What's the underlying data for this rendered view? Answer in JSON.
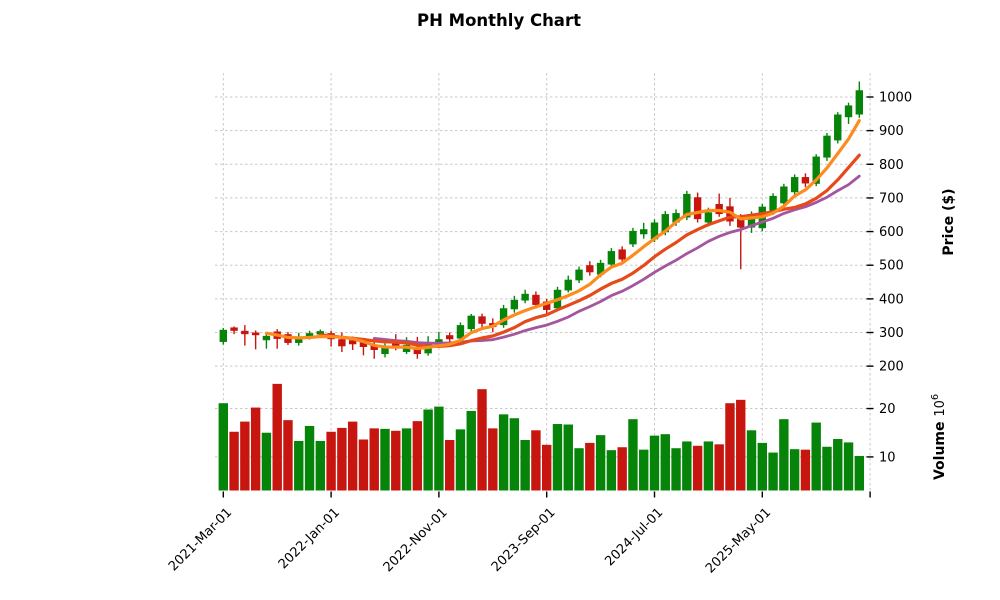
{
  "title": "PH Monthly Chart",
  "price_axis": {
    "label": "Price ($)",
    "ticks": [
      200,
      300,
      400,
      500,
      600,
      700,
      800,
      900,
      1000
    ]
  },
  "volume_axis": {
    "label": "Volume",
    "scale_text": "10",
    "scale_exp": "6",
    "ticks": [
      10,
      20
    ]
  },
  "x_axis": {
    "tick_indices": [
      0,
      10,
      20,
      30,
      40,
      50,
      60
    ],
    "tick_labels": [
      "2021-Mar-01",
      "2022-Jan-01",
      "2022-Nov-01",
      "2023-Sep-01",
      "2024-Jul-01",
      "2025-May-01",
      ""
    ]
  },
  "colors": {
    "up": "#068409",
    "down": "#c7150f",
    "grid": "#c8c8c8",
    "ma_fast": "#fd8b1d",
    "ma_mid": "#e54a18",
    "ma_slow": "#a4559e",
    "text": "#000000"
  },
  "chart_data": {
    "type": "candlestick",
    "symbol": "PH",
    "interval": "monthly",
    "title": "PH Monthly Chart",
    "ylabel": "Price ($)",
    "ylabel_lower": "Volume 10^6",
    "price_ylim": [
      182,
      1077
    ],
    "volume_ylim": [
      3.1,
      27.6
    ],
    "grid": "dashed",
    "legend": "none",
    "moving_averages": [
      {
        "window": 15,
        "color_key": "ma_slow",
        "width": 2.8
      },
      {
        "window": 10,
        "color_key": "ma_mid",
        "width": 3.2
      },
      {
        "window": 5,
        "color_key": "ma_fast",
        "width": 3.2
      }
    ],
    "columns": [
      "date",
      "open",
      "high",
      "low",
      "close",
      "volume_millions"
    ],
    "candles": [
      [
        "2021-03",
        272,
        313,
        264,
        308,
        21.1
      ],
      [
        "2021-04",
        315,
        318,
        295,
        305,
        15.2
      ],
      [
        "2021-05",
        305,
        322,
        261,
        295,
        17.3
      ],
      [
        "2021-06",
        300,
        306,
        250,
        292,
        20.2
      ],
      [
        "2021-07",
        277,
        296,
        252,
        290,
        15.0
      ],
      [
        "2021-08",
        303,
        310,
        252,
        281,
        25.1
      ],
      [
        "2021-09",
        295,
        301,
        263,
        269,
        17.6
      ],
      [
        "2021-10",
        269,
        299,
        261,
        288,
        13.3
      ],
      [
        "2021-11",
        287,
        305,
        279,
        298,
        16.4
      ],
      [
        "2021-12",
        294,
        309,
        287,
        304,
        13.3
      ],
      [
        "2022-01",
        298,
        305,
        258,
        280,
        15.2
      ],
      [
        "2022-02",
        280,
        300,
        242,
        259,
        16.0
      ],
      [
        "2022-03",
        277,
        288,
        248,
        265,
        17.3
      ],
      [
        "2022-04",
        272,
        284,
        232,
        257,
        13.6
      ],
      [
        "2022-05",
        264,
        278,
        222,
        248,
        15.9
      ],
      [
        "2022-06",
        236,
        268,
        226,
        256,
        15.8
      ],
      [
        "2022-07",
        271,
        295,
        247,
        257,
        15.4
      ],
      [
        "2022-08",
        242,
        286,
        236,
        263,
        15.9
      ],
      [
        "2022-09",
        257,
        287,
        222,
        236,
        17.4
      ],
      [
        "2022-10",
        238,
        289,
        231,
        266,
        19.8
      ],
      [
        "2022-11",
        265,
        302,
        256,
        280,
        20.4
      ],
      [
        "2022-12",
        292,
        300,
        269,
        280,
        13.5
      ],
      [
        "2023-01",
        282,
        330,
        276,
        322,
        15.7
      ],
      [
        "2023-02",
        310,
        355,
        300,
        350,
        19.5
      ],
      [
        "2023-03",
        348,
        356,
        314,
        326,
        24.0
      ],
      [
        "2023-04",
        328,
        342,
        301,
        316,
        15.9
      ],
      [
        "2023-05",
        322,
        382,
        314,
        372,
        18.8
      ],
      [
        "2023-06",
        369,
        409,
        359,
        397,
        18.0
      ],
      [
        "2023-07",
        395,
        427,
        387,
        415,
        13.5
      ],
      [
        "2023-08",
        412,
        422,
        371,
        382,
        15.5
      ],
      [
        "2023-09",
        392,
        400,
        352,
        367,
        12.5
      ],
      [
        "2023-10",
        372,
        436,
        364,
        427,
        16.8
      ],
      [
        "2023-11",
        425,
        469,
        419,
        457,
        16.7
      ],
      [
        "2023-12",
        455,
        496,
        447,
        487,
        11.8
      ],
      [
        "2024-01",
        500,
        512,
        469,
        479,
        12.9
      ],
      [
        "2024-02",
        472,
        516,
        464,
        507,
        14.5
      ],
      [
        "2024-03",
        502,
        551,
        494,
        542,
        11.4
      ],
      [
        "2024-04",
        547,
        556,
        507,
        517,
        12.0
      ],
      [
        "2024-05",
        562,
        611,
        554,
        602,
        17.8
      ],
      [
        "2024-06",
        592,
        626,
        579,
        607,
        11.5
      ],
      [
        "2024-07",
        577,
        636,
        569,
        627,
        14.4
      ],
      [
        "2024-08",
        598,
        661,
        589,
        652,
        14.7
      ],
      [
        "2024-09",
        627,
        666,
        617,
        655,
        11.8
      ],
      [
        "2024-10",
        642,
        721,
        634,
        712,
        13.2
      ],
      [
        "2024-11",
        702,
        716,
        627,
        637,
        12.3
      ],
      [
        "2024-12",
        627,
        671,
        615,
        657,
        13.2
      ],
      [
        "2025-01",
        682,
        713,
        644,
        652,
        12.6
      ],
      [
        "2025-02",
        675,
        700,
        617,
        630,
        21.1
      ],
      [
        "2025-03",
        640,
        652,
        488,
        612,
        21.8
      ],
      [
        "2025-04",
        612,
        660,
        596,
        652,
        15.5
      ],
      [
        "2025-05",
        610,
        682,
        601,
        674,
        12.9
      ],
      [
        "2025-06",
        660,
        714,
        650,
        706,
        10.9
      ],
      [
        "2025-07",
        684,
        742,
        674,
        734,
        17.8
      ],
      [
        "2025-08",
        717,
        770,
        707,
        762,
        11.6
      ],
      [
        "2025-09",
        762,
        773,
        732,
        743,
        11.5
      ],
      [
        "2025-10",
        742,
        830,
        735,
        823,
        17.1
      ],
      [
        "2025-11",
        820,
        893,
        810,
        885,
        12.1
      ],
      [
        "2025-12",
        871,
        955,
        862,
        948,
        13.7
      ],
      [
        "2026-01",
        940,
        983,
        920,
        975,
        13.0
      ],
      [
        "2026-02",
        948,
        1046,
        938,
        1020,
        10.2
      ]
    ]
  }
}
